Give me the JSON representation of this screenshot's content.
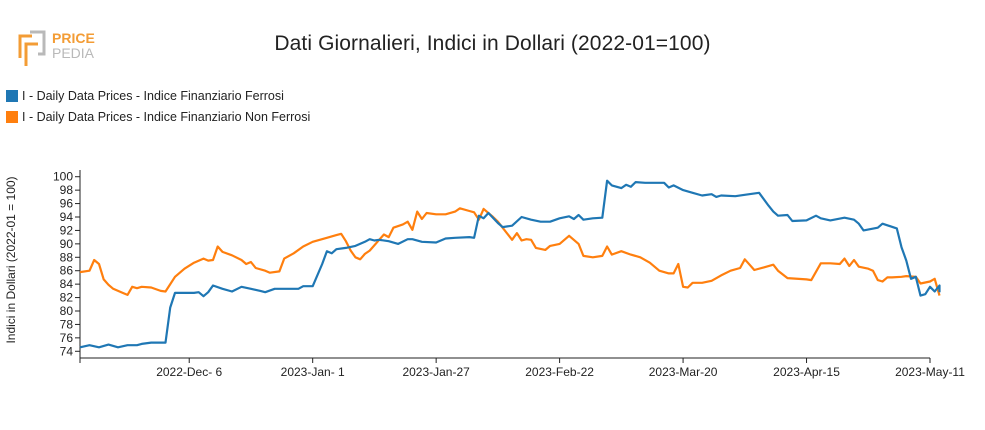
{
  "header": {
    "title": "Dati Giornalieri, Indici in Dollari (2022-01=100)",
    "logo_text_top": "PRICE",
    "logo_text_bottom": "PEDIA"
  },
  "colors": {
    "ferrosi": "#1f77b4",
    "non_ferrosi": "#ff7f0e",
    "logo_orange": "#f39c35",
    "logo_gray": "#b9b9b9"
  },
  "chart_data": {
    "type": "line",
    "title": "Dati Giornalieri, Indici in Dollari (2022-01=100)",
    "xlabel": "",
    "ylabel": "Indici in Dollari (2022-01 = 100)",
    "ylim": [
      73,
      101
    ],
    "xlim": [
      "2022-11-13",
      "2023-05-11"
    ],
    "yticks": [
      74,
      76,
      78,
      80,
      82,
      84,
      86,
      88,
      90,
      92,
      94,
      96,
      98,
      100
    ],
    "xticks": [
      {
        "date": "2022-12-06",
        "label": "2022-Dec- 6"
      },
      {
        "date": "2023-01-01",
        "label": "2023-Jan- 1"
      },
      {
        "date": "2023-01-27",
        "label": "2023-Jan-27"
      },
      {
        "date": "2023-02-22",
        "label": "2023-Feb-22"
      },
      {
        "date": "2023-03-20",
        "label": "2023-Mar-20"
      },
      {
        "date": "2023-04-15",
        "label": "2023-Apr-15"
      },
      {
        "date": "2023-05-11",
        "label": "2023-May-11"
      }
    ],
    "grid": false,
    "legend_position": "top-left",
    "series": [
      {
        "name": "I - Daily Data Prices - Indice Finanziario Ferrosi",
        "color": "#1f77b4",
        "points": [
          [
            "2022-11-13",
            74.6
          ],
          [
            "2022-11-15",
            74.9
          ],
          [
            "2022-11-17",
            74.6
          ],
          [
            "2022-11-19",
            75.0
          ],
          [
            "2022-11-21",
            74.6
          ],
          [
            "2022-11-23",
            74.9
          ],
          [
            "2022-11-25",
            74.9
          ],
          [
            "2022-11-26",
            75.1
          ],
          [
            "2022-11-28",
            75.3
          ],
          [
            "2022-11-30",
            75.3
          ],
          [
            "2022-12-01",
            75.3
          ],
          [
            "2022-12-02",
            80.5
          ],
          [
            "2022-12-03",
            82.7
          ],
          [
            "2022-12-05",
            82.7
          ],
          [
            "2022-12-07",
            82.7
          ],
          [
            "2022-12-08",
            82.8
          ],
          [
            "2022-12-09",
            82.2
          ],
          [
            "2022-12-10",
            82.8
          ],
          [
            "2022-12-11",
            83.8
          ],
          [
            "2022-12-13",
            83.3
          ],
          [
            "2022-12-15",
            82.9
          ],
          [
            "2022-12-17",
            83.6
          ],
          [
            "2022-12-19",
            83.3
          ],
          [
            "2022-12-21",
            83.0
          ],
          [
            "2022-12-22",
            82.8
          ],
          [
            "2022-12-24",
            83.3
          ],
          [
            "2022-12-26",
            83.3
          ],
          [
            "2022-12-29",
            83.3
          ],
          [
            "2022-12-30",
            83.7
          ],
          [
            "2023-01-01",
            83.7
          ],
          [
            "2023-01-03",
            87.0
          ],
          [
            "2023-01-04",
            88.9
          ],
          [
            "2023-01-05",
            88.6
          ],
          [
            "2023-01-06",
            89.2
          ],
          [
            "2023-01-08",
            89.4
          ],
          [
            "2023-01-10",
            89.7
          ],
          [
            "2023-01-12",
            90.3
          ],
          [
            "2023-01-13",
            90.7
          ],
          [
            "2023-01-14",
            90.5
          ],
          [
            "2023-01-15",
            90.6
          ],
          [
            "2023-01-17",
            90.4
          ],
          [
            "2023-01-19",
            90.0
          ],
          [
            "2023-01-21",
            90.7
          ],
          [
            "2023-01-22",
            90.7
          ],
          [
            "2023-01-24",
            90.3
          ],
          [
            "2023-01-27",
            90.2
          ],
          [
            "2023-01-29",
            90.8
          ],
          [
            "2023-01-31",
            90.9
          ],
          [
            "2023-02-03",
            91.0
          ],
          [
            "2023-02-04",
            90.9
          ],
          [
            "2023-02-05",
            94.2
          ],
          [
            "2023-02-06",
            93.8
          ],
          [
            "2023-02-07",
            94.6
          ],
          [
            "2023-02-09",
            93.1
          ],
          [
            "2023-02-10",
            92.5
          ],
          [
            "2023-02-12",
            92.7
          ],
          [
            "2023-02-14",
            94.0
          ],
          [
            "2023-02-16",
            93.6
          ],
          [
            "2023-02-18",
            93.3
          ],
          [
            "2023-02-20",
            93.3
          ],
          [
            "2023-02-22",
            93.8
          ],
          [
            "2023-02-24",
            94.1
          ],
          [
            "2023-02-25",
            93.7
          ],
          [
            "2023-02-26",
            94.3
          ],
          [
            "2023-02-27",
            93.6
          ],
          [
            "2023-03-01",
            93.8
          ],
          [
            "2023-03-03",
            93.9
          ],
          [
            "2023-03-04",
            99.4
          ],
          [
            "2023-03-05",
            98.7
          ],
          [
            "2023-03-07",
            98.3
          ],
          [
            "2023-03-08",
            98.8
          ],
          [
            "2023-03-09",
            98.5
          ],
          [
            "2023-03-10",
            99.2
          ],
          [
            "2023-03-12",
            99.1
          ],
          [
            "2023-03-14",
            99.1
          ],
          [
            "2023-03-16",
            99.1
          ],
          [
            "2023-03-17",
            98.4
          ],
          [
            "2023-03-18",
            98.7
          ],
          [
            "2023-03-20",
            98.0
          ],
          [
            "2023-03-22",
            97.6
          ],
          [
            "2023-03-24",
            97.2
          ],
          [
            "2023-03-26",
            97.4
          ],
          [
            "2023-03-27",
            97.0
          ],
          [
            "2023-03-28",
            97.2
          ],
          [
            "2023-03-31",
            97.1
          ],
          [
            "2023-04-02",
            97.3
          ],
          [
            "2023-04-05",
            97.6
          ],
          [
            "2023-04-07",
            95.7
          ],
          [
            "2023-04-08",
            94.8
          ],
          [
            "2023-04-09",
            94.2
          ],
          [
            "2023-04-11",
            94.3
          ],
          [
            "2023-04-12",
            93.4
          ],
          [
            "2023-04-15",
            93.5
          ],
          [
            "2023-04-17",
            94.2
          ],
          [
            "2023-04-18",
            93.8
          ],
          [
            "2023-04-20",
            93.5
          ],
          [
            "2023-04-23",
            93.9
          ],
          [
            "2023-04-25",
            93.6
          ],
          [
            "2023-04-26",
            93.0
          ],
          [
            "2023-04-27",
            92.0
          ],
          [
            "2023-04-30",
            92.4
          ],
          [
            "2023-05-01",
            93.0
          ],
          [
            "2023-05-04",
            92.3
          ],
          [
            "2023-05-05",
            89.5
          ],
          [
            "2023-05-06",
            87.5
          ],
          [
            "2023-05-07",
            84.8
          ],
          [
            "2023-05-08",
            85.1
          ],
          [
            "2023-05-09",
            82.3
          ],
          [
            "2023-05-10",
            82.5
          ],
          [
            "2023-05-11",
            83.6
          ],
          [
            "2023-05-12",
            82.9
          ],
          [
            "2023-05-13",
            83.8
          ],
          [
            "2023-05-13",
            82.8
          ]
        ]
      },
      {
        "name": "I - Daily Data Prices - Indice Finanziario Non Ferrosi",
        "color": "#ff7f0e",
        "points": [
          [
            "2022-11-13",
            85.8
          ],
          [
            "2022-11-15",
            86.0
          ],
          [
            "2022-11-16",
            87.6
          ],
          [
            "2022-11-17",
            87.0
          ],
          [
            "2022-11-18",
            84.7
          ],
          [
            "2022-11-19",
            83.9
          ],
          [
            "2022-11-20",
            83.3
          ],
          [
            "2022-11-22",
            82.7
          ],
          [
            "2022-11-23",
            82.4
          ],
          [
            "2022-11-24",
            83.6
          ],
          [
            "2022-11-25",
            83.4
          ],
          [
            "2022-11-26",
            83.6
          ],
          [
            "2022-11-28",
            83.5
          ],
          [
            "2022-11-30",
            83.0
          ],
          [
            "2022-12-01",
            82.9
          ],
          [
            "2022-12-03",
            85.1
          ],
          [
            "2022-12-05",
            86.3
          ],
          [
            "2022-12-07",
            87.2
          ],
          [
            "2022-12-09",
            87.8
          ],
          [
            "2022-12-10",
            87.5
          ],
          [
            "2022-12-11",
            87.6
          ],
          [
            "2022-12-12",
            89.6
          ],
          [
            "2022-12-13",
            88.8
          ],
          [
            "2022-12-15",
            88.3
          ],
          [
            "2022-12-17",
            87.6
          ],
          [
            "2022-12-18",
            87.0
          ],
          [
            "2022-12-19",
            87.3
          ],
          [
            "2022-12-20",
            86.4
          ],
          [
            "2022-12-22",
            86.0
          ],
          [
            "2022-12-23",
            85.7
          ],
          [
            "2022-12-25",
            85.9
          ],
          [
            "2022-12-26",
            87.8
          ],
          [
            "2022-12-28",
            88.6
          ],
          [
            "2022-12-30",
            89.6
          ],
          [
            "2023-01-01",
            90.3
          ],
          [
            "2023-01-04",
            90.9
          ],
          [
            "2023-01-06",
            91.3
          ],
          [
            "2023-01-07",
            91.5
          ],
          [
            "2023-01-08",
            90.4
          ],
          [
            "2023-01-09",
            89.0
          ],
          [
            "2023-01-10",
            88.0
          ],
          [
            "2023-01-11",
            87.7
          ],
          [
            "2023-01-12",
            88.5
          ],
          [
            "2023-01-13",
            89.0
          ],
          [
            "2023-01-15",
            90.6
          ],
          [
            "2023-01-16",
            91.4
          ],
          [
            "2023-01-17",
            91.0
          ],
          [
            "2023-01-18",
            92.4
          ],
          [
            "2023-01-20",
            92.9
          ],
          [
            "2023-01-21",
            93.3
          ],
          [
            "2023-01-22",
            92.1
          ],
          [
            "2023-01-23",
            94.8
          ],
          [
            "2023-01-24",
            93.7
          ],
          [
            "2023-01-25",
            94.6
          ],
          [
            "2023-01-27",
            94.4
          ],
          [
            "2023-01-29",
            94.4
          ],
          [
            "2023-01-31",
            94.8
          ],
          [
            "2023-02-01",
            95.3
          ],
          [
            "2023-02-03",
            94.9
          ],
          [
            "2023-02-04",
            94.7
          ],
          [
            "2023-02-05",
            93.6
          ],
          [
            "2023-02-06",
            95.2
          ],
          [
            "2023-02-08",
            94.0
          ],
          [
            "2023-02-09",
            93.3
          ],
          [
            "2023-02-10",
            92.4
          ],
          [
            "2023-02-12",
            90.6
          ],
          [
            "2023-02-13",
            91.6
          ],
          [
            "2023-02-14",
            90.5
          ],
          [
            "2023-02-15",
            90.7
          ],
          [
            "2023-02-16",
            90.6
          ],
          [
            "2023-02-17",
            89.4
          ],
          [
            "2023-02-19",
            89.1
          ],
          [
            "2023-02-20",
            89.7
          ],
          [
            "2023-02-22",
            90.0
          ],
          [
            "2023-02-24",
            91.2
          ],
          [
            "2023-02-26",
            90.0
          ],
          [
            "2023-02-27",
            88.2
          ],
          [
            "2023-03-01",
            88.0
          ],
          [
            "2023-03-03",
            88.2
          ],
          [
            "2023-03-04",
            89.6
          ],
          [
            "2023-03-05",
            88.4
          ],
          [
            "2023-03-07",
            88.9
          ],
          [
            "2023-03-09",
            88.4
          ],
          [
            "2023-03-11",
            88.0
          ],
          [
            "2023-03-13",
            87.2
          ],
          [
            "2023-03-15",
            86.0
          ],
          [
            "2023-03-17",
            85.6
          ],
          [
            "2023-03-18",
            85.6
          ],
          [
            "2023-03-19",
            87.0
          ],
          [
            "2023-03-20",
            83.6
          ],
          [
            "2023-03-21",
            83.5
          ],
          [
            "2023-03-22",
            84.2
          ],
          [
            "2023-03-24",
            84.2
          ],
          [
            "2023-03-26",
            84.5
          ],
          [
            "2023-03-28",
            85.3
          ],
          [
            "2023-03-30",
            86.0
          ],
          [
            "2023-04-01",
            86.4
          ],
          [
            "2023-04-02",
            87.7
          ],
          [
            "2023-04-03",
            86.9
          ],
          [
            "2023-04-04",
            86.1
          ],
          [
            "2023-04-06",
            86.5
          ],
          [
            "2023-04-08",
            86.9
          ],
          [
            "2023-04-09",
            86.0
          ],
          [
            "2023-04-11",
            84.9
          ],
          [
            "2023-04-15",
            84.7
          ],
          [
            "2023-04-16",
            84.6
          ],
          [
            "2023-04-18",
            87.1
          ],
          [
            "2023-04-20",
            87.1
          ],
          [
            "2023-04-22",
            87.0
          ],
          [
            "2023-04-23",
            87.8
          ],
          [
            "2023-04-24",
            86.7
          ],
          [
            "2023-04-25",
            87.6
          ],
          [
            "2023-04-26",
            86.6
          ],
          [
            "2023-04-28",
            86.3
          ],
          [
            "2023-04-29",
            86.0
          ],
          [
            "2023-04-30",
            84.6
          ],
          [
            "2023-05-01",
            84.4
          ],
          [
            "2023-05-02",
            85.0
          ],
          [
            "2023-05-03",
            85.0
          ],
          [
            "2023-05-05",
            85.1
          ],
          [
            "2023-05-06",
            85.2
          ],
          [
            "2023-05-08",
            85.1
          ],
          [
            "2023-05-09",
            84.1
          ],
          [
            "2023-05-11",
            84.4
          ],
          [
            "2023-05-12",
            84.8
          ],
          [
            "2023-05-13",
            82.3
          ]
        ]
      }
    ]
  }
}
